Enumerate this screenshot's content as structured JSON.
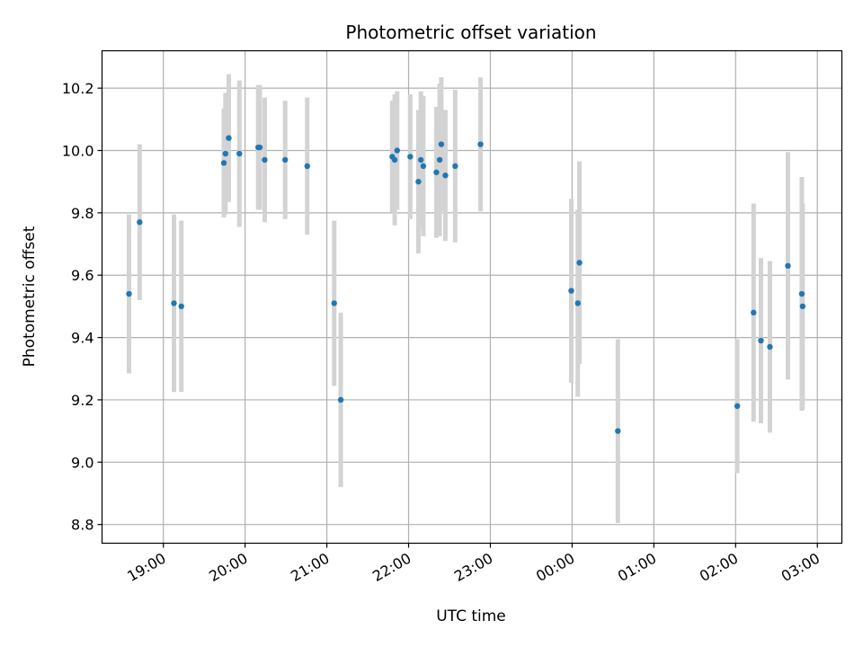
{
  "chart_data": {
    "type": "scatter",
    "title": "Photometric offset variation",
    "xlabel": "UTC time",
    "ylabel": "Photometric offset",
    "x_unit": "hours since 00:00 of first day",
    "xlim": [
      18.25,
      27.3
    ],
    "ylim": [
      8.74,
      10.32
    ],
    "grid": true,
    "x_ticks": [
      {
        "value": 19,
        "label": "19:00"
      },
      {
        "value": 20,
        "label": "20:00"
      },
      {
        "value": 21,
        "label": "21:00"
      },
      {
        "value": 22,
        "label": "22:00"
      },
      {
        "value": 23,
        "label": "23:00"
      },
      {
        "value": 24,
        "label": "00:00"
      },
      {
        "value": 25,
        "label": "01:00"
      },
      {
        "value": 26,
        "label": "02:00"
      },
      {
        "value": 27,
        "label": "03:00"
      }
    ],
    "y_ticks": [
      {
        "value": 8.8,
        "label": "8.8"
      },
      {
        "value": 9.0,
        "label": "9.0"
      },
      {
        "value": 9.2,
        "label": "9.2"
      },
      {
        "value": 9.4,
        "label": "9.4"
      },
      {
        "value": 9.6,
        "label": "9.6"
      },
      {
        "value": 9.8,
        "label": "9.8"
      },
      {
        "value": 10.0,
        "label": "10.0"
      },
      {
        "value": 10.2,
        "label": "10.2"
      }
    ],
    "marker_color": "#1f77b4",
    "errorbar_color": "#d3d3d3",
    "points": [
      {
        "x": 18.58,
        "y": 9.54,
        "err": 0.255
      },
      {
        "x": 18.71,
        "y": 9.77,
        "err": 0.25
      },
      {
        "x": 19.13,
        "y": 9.51,
        "err": 0.285
      },
      {
        "x": 19.22,
        "y": 9.5,
        "err": 0.275
      },
      {
        "x": 19.74,
        "y": 9.96,
        "err": 0.175
      },
      {
        "x": 19.76,
        "y": 9.99,
        "err": 0.195
      },
      {
        "x": 19.8,
        "y": 10.04,
        "err": 0.205
      },
      {
        "x": 19.93,
        "y": 9.99,
        "err": 0.235
      },
      {
        "x": 20.16,
        "y": 10.01,
        "err": 0.2
      },
      {
        "x": 20.18,
        "y": 10.01,
        "err": 0.2
      },
      {
        "x": 20.24,
        "y": 9.97,
        "err": 0.2
      },
      {
        "x": 20.49,
        "y": 9.97,
        "err": 0.19
      },
      {
        "x": 20.76,
        "y": 9.95,
        "err": 0.22
      },
      {
        "x": 21.09,
        "y": 9.51,
        "err": 0.265
      },
      {
        "x": 21.17,
        "y": 9.2,
        "err": 0.28
      },
      {
        "x": 21.8,
        "y": 9.98,
        "err": 0.18
      },
      {
        "x": 21.83,
        "y": 9.97,
        "err": 0.21
      },
      {
        "x": 21.86,
        "y": 10.0,
        "err": 0.19
      },
      {
        "x": 22.02,
        "y": 9.98,
        "err": 0.2
      },
      {
        "x": 22.12,
        "y": 9.9,
        "err": 0.23
      },
      {
        "x": 22.15,
        "y": 9.97,
        "err": 0.22
      },
      {
        "x": 22.18,
        "y": 9.95,
        "err": 0.225
      },
      {
        "x": 22.34,
        "y": 9.93,
        "err": 0.21
      },
      {
        "x": 22.38,
        "y": 9.97,
        "err": 0.245
      },
      {
        "x": 22.4,
        "y": 10.02,
        "err": 0.215
      },
      {
        "x": 22.45,
        "y": 9.92,
        "err": 0.21
      },
      {
        "x": 22.57,
        "y": 9.95,
        "err": 0.245
      },
      {
        "x": 22.88,
        "y": 10.02,
        "err": 0.215
      },
      {
        "x": 23.99,
        "y": 9.55,
        "err": 0.295
      },
      {
        "x": 24.07,
        "y": 9.51,
        "err": 0.3
      },
      {
        "x": 24.09,
        "y": 9.64,
        "err": 0.325
      },
      {
        "x": 24.56,
        "y": 9.1,
        "err": 0.295
      },
      {
        "x": 26.02,
        "y": 9.18,
        "err": 0.215
      },
      {
        "x": 26.22,
        "y": 9.48,
        "err": 0.35
      },
      {
        "x": 26.31,
        "y": 9.39,
        "err": 0.265
      },
      {
        "x": 26.42,
        "y": 9.37,
        "err": 0.275
      },
      {
        "x": 26.64,
        "y": 9.63,
        "err": 0.365
      },
      {
        "x": 26.81,
        "y": 9.54,
        "err": 0.375
      },
      {
        "x": 26.82,
        "y": 9.5,
        "err": 0.33
      }
    ]
  }
}
